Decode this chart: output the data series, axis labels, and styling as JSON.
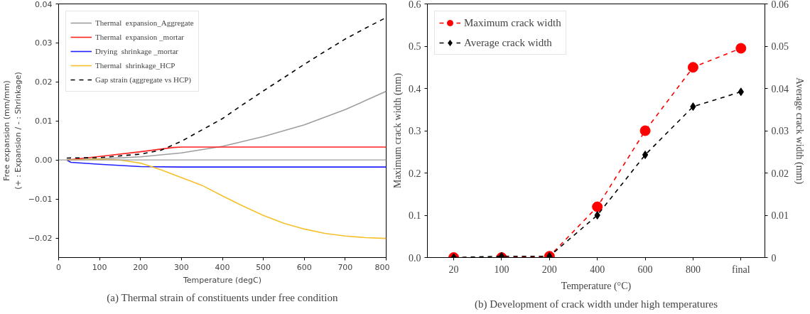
{
  "chart_data": [
    {
      "type": "line",
      "xlabel": "Temperature (degC)",
      "ylabel": "Free expansion (mm/mm)\n(+ : Expansion / - : Shrinkage)",
      "xlim": [
        0,
        800
      ],
      "xticks": [
        0,
        100,
        200,
        300,
        400,
        500,
        600,
        700,
        800
      ],
      "ylim": [
        -0.025,
        0.04
      ],
      "yticks": [
        {
          "value": 0.04,
          "label": "0.04"
        },
        {
          "value": 0.03,
          "label": "0.03"
        },
        {
          "value": 0.02,
          "label": "0.02"
        },
        {
          "value": 0.01,
          "label": "0.01"
        },
        {
          "value": 0,
          "label": "0.00"
        },
        {
          "value": -0.01,
          "label": "−0.01"
        },
        {
          "value": -0.02,
          "label": "−0.02"
        }
      ],
      "grid": false,
      "legend": "top left",
      "ref_lines": [
        {
          "axis": "y",
          "value": 0,
          "color": "#9e9e9e"
        }
      ],
      "annotations": [
        "(a) Thermal strain of constituents under free condition"
      ],
      "series": [
        {
          "name": "Thermal  expansion_Aggregate",
          "color": "#9e9e9e",
          "line_style": "solid",
          "x": [
            20,
            100,
            200,
            300,
            400,
            500,
            600,
            700,
            800
          ],
          "values": [
            0,
            0.0003,
            0.0008,
            0.0018,
            0.0035,
            0.006,
            0.009,
            0.0129,
            0.0176
          ]
        },
        {
          "name": "Thermal  expansion _mortar",
          "color": "#ff2020",
          "line_style": "solid",
          "x": [
            20,
            100,
            200,
            280,
            300,
            800
          ],
          "values": [
            0,
            0.0009,
            0.0021,
            0.0032,
            0.0033,
            0.0033
          ]
        },
        {
          "name": "Drying  shrinkage _mortar",
          "color": "#2020ff",
          "line_style": "solid",
          "x": [
            20,
            30,
            100,
            200,
            300,
            800
          ],
          "values": [
            0,
            -0.0006,
            -0.0011,
            -0.0017,
            -0.0018,
            -0.0018
          ]
        },
        {
          "name": "Thermal  shrinkage_HCP",
          "color": "#f5c02a",
          "line_style": "solid",
          "x": [
            20,
            100,
            150,
            200,
            250,
            300,
            350,
            400,
            450,
            500,
            550,
            600,
            650,
            700,
            750,
            800
          ],
          "values": [
            0,
            0.0002,
            0,
            -0.0008,
            -0.0025,
            -0.0045,
            -0.0065,
            -0.0092,
            -0.0118,
            -0.0142,
            -0.0162,
            -0.0177,
            -0.0188,
            -0.0195,
            -0.0199,
            -0.0201
          ]
        },
        {
          "name": "Gap strain (aggregate vs HCP)",
          "color": "#000000",
          "line_style": "dashed",
          "x": [
            20,
            100,
            200,
            250,
            300,
            350,
            400,
            450,
            500,
            550,
            600,
            650,
            700,
            750,
            800
          ],
          "values": [
            0.0005,
            0.0006,
            0.0015,
            0.0025,
            0.0048,
            0.0077,
            0.0106,
            0.0142,
            0.0177,
            0.0211,
            0.0245,
            0.0278,
            0.031,
            0.0338,
            0.0365
          ]
        }
      ]
    },
    {
      "type": "line",
      "xlabel": "Temperature (°C)",
      "ylabel": "Maximum crack width (mm)",
      "y2label": "Average crack width (mm)",
      "categories": [
        "20",
        "100",
        "200",
        "400",
        "600",
        "800",
        "final"
      ],
      "ylim": [
        0,
        0.6
      ],
      "yticks": [
        {
          "value": 0,
          "label": "0.0"
        },
        0.1,
        0.2,
        0.3,
        0.4,
        0.5,
        0.6
      ],
      "y2lim": [
        0,
        0.06
      ],
      "y2ticks": [
        0,
        0.01,
        0.02,
        0.03,
        0.04,
        0.05,
        0.06
      ],
      "grid": false,
      "legend": "top left",
      "annotations": [
        "(b) Development of crack width under high temperatures"
      ],
      "series": [
        {
          "name": "Maximum crack width",
          "color": "#ff0000",
          "line_style": "dashed",
          "marker": "circle",
          "values": [
            0,
            0,
            0.003,
            0.12,
            0.3,
            0.45,
            0.495
          ]
        },
        {
          "name": "Average crack width",
          "color": "#000000",
          "line_style": "dashed",
          "marker": "diamond",
          "axis": "y2",
          "values": [
            0,
            0.0003,
            0.0003,
            0.01,
            0.0243,
            0.0357,
            0.0392
          ]
        }
      ]
    }
  ]
}
